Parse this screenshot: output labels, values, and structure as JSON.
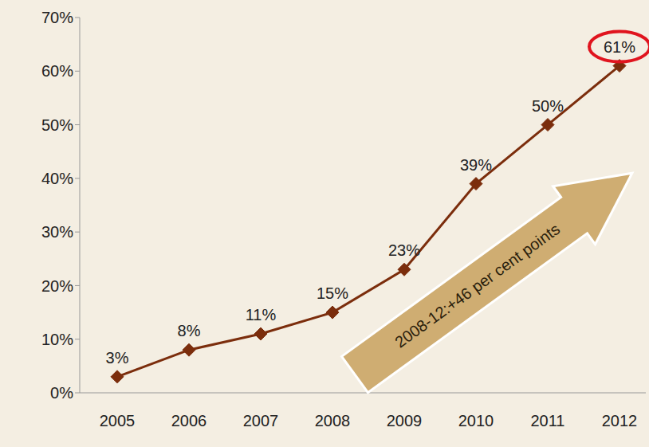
{
  "chart_data": {
    "type": "line",
    "categories": [
      "2005",
      "2006",
      "2007",
      "2008",
      "2009",
      "2010",
      "2011",
      "2012"
    ],
    "values": [
      3,
      8,
      11,
      15,
      23,
      39,
      50,
      61
    ],
    "value_labels": [
      "3%",
      "8%",
      "11%",
      "15%",
      "23%",
      "39%",
      "50%",
      "61%"
    ],
    "color": "#7b2d0c",
    "marker": "diamond",
    "ylim": [
      0,
      70
    ],
    "yticks": [
      {
        "value": 0,
        "label": "0%"
      },
      {
        "value": 10,
        "label": "10%"
      },
      {
        "value": 20,
        "label": "20%"
      },
      {
        "value": 30,
        "label": "30%"
      },
      {
        "value": 40,
        "label": "40%"
      },
      {
        "value": 50,
        "label": "50%"
      },
      {
        "value": 60,
        "label": "60%"
      },
      {
        "value": 70,
        "label": "70%"
      }
    ],
    "grid": false,
    "data_labels": true,
    "annotations": [
      "2008-12:+46 per cent points"
    ]
  }
}
